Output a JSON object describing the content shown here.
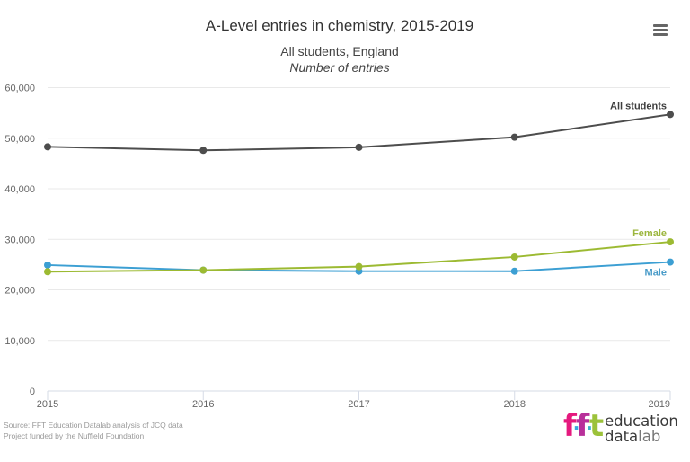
{
  "header": {
    "title": "A-Level entries in chemistry, 2015-2019",
    "subtitle": "All students, England",
    "subtitle_italic": "Number of entries",
    "menu_icon": "hamburger-menu-icon"
  },
  "chart_data": {
    "type": "line",
    "title": "A-Level entries in chemistry, 2015-2019",
    "subtitle": "All students, England",
    "ylabel": "Number of entries",
    "xlabel": "",
    "categories": [
      "2015",
      "2016",
      "2017",
      "2018",
      "2019"
    ],
    "ylim": [
      0,
      60000
    ],
    "yticks": [
      0,
      10000,
      20000,
      30000,
      40000,
      50000,
      60000
    ],
    "ytick_labels": [
      "0",
      "10,000",
      "20,000",
      "30,000",
      "40,000",
      "50,000",
      "60,000"
    ],
    "grid": true,
    "legend": "inline-end-labels",
    "series": [
      {
        "name": "All students",
        "color": "#4d4d4d",
        "label_color": "#3d3d3d",
        "label_position": "above",
        "values": [
          48300,
          47600,
          48200,
          50200,
          54700
        ]
      },
      {
        "name": "Male",
        "color": "#3c9fd3",
        "label_color": "#4a9cc9",
        "label_position": "below",
        "values": [
          24900,
          23900,
          23700,
          23700,
          25500
        ]
      },
      {
        "name": "Female",
        "color": "#9cba32",
        "label_color": "#9cb63e",
        "label_position": "above",
        "values": [
          23600,
          23900,
          24600,
          26500,
          29500
        ]
      }
    ]
  },
  "credits": {
    "line1": "Source: FFT Education Datalab analysis of JCQ data",
    "line2": "Project funded by the Nuffield Foundation"
  },
  "logo": {
    "letters": [
      "f",
      "f",
      "t"
    ],
    "colors": [
      "#e5197e",
      "#b8309a",
      "#9cc23a"
    ],
    "dot_colors": [
      "#3aa6dd",
      "#3ab3c9"
    ],
    "line1": "education",
    "line2_bold": "data",
    "line2_light": "lab"
  }
}
